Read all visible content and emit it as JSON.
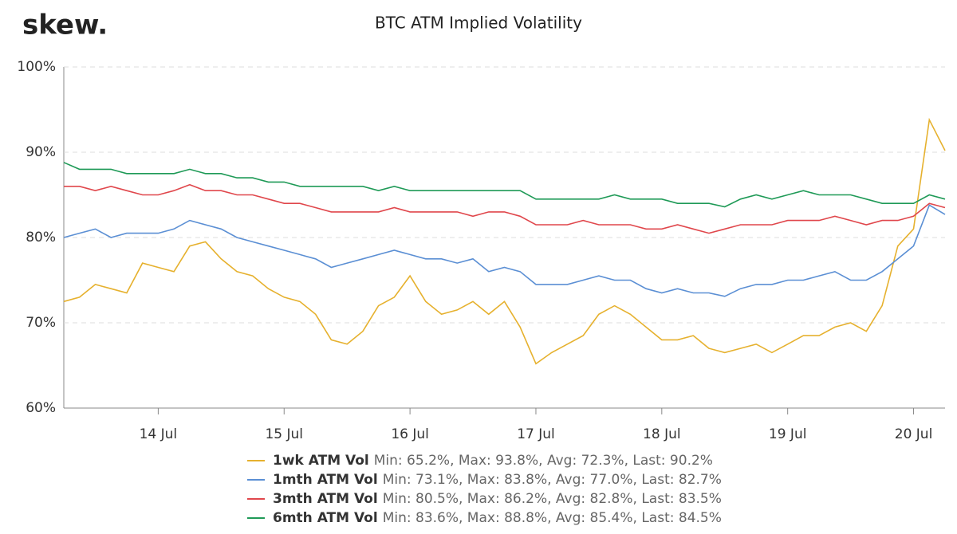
{
  "logo": "skew.",
  "chart_data": {
    "type": "line",
    "title": "BTC ATM Implied Volatility",
    "categories": [
      null,
      null,
      null,
      null,
      null,
      null,
      "14 Jul",
      null,
      null,
      null,
      null,
      null,
      null,
      null,
      "15 Jul",
      null,
      null,
      null,
      null,
      null,
      null,
      null,
      "16 Jul",
      null,
      null,
      null,
      null,
      null,
      null,
      null,
      "17 Jul",
      null,
      null,
      null,
      null,
      null,
      null,
      null,
      "18 Jul",
      null,
      null,
      null,
      null,
      null,
      null,
      null,
      "19 Jul",
      null,
      null,
      null,
      null,
      null,
      null,
      null,
      "20 Jul",
      null,
      null
    ],
    "ylim": [
      60,
      100
    ],
    "yticks": [
      {
        "value": 60,
        "label": "60%"
      },
      {
        "value": 70,
        "label": "70%"
      },
      {
        "value": 80,
        "label": "80%"
      },
      {
        "value": 90,
        "label": "90%"
      },
      {
        "value": 100,
        "label": "100%"
      }
    ],
    "grid": true,
    "series": [
      {
        "name": "1wk ATM Vol",
        "stats": "Min: 65.2%, Max: 93.8%, Avg: 72.3%, Last: 90.2%",
        "color": "#e6b12e",
        "values": [
          72.5,
          73,
          74.5,
          74,
          73.5,
          77,
          76.5,
          76,
          79,
          79.5,
          77.5,
          76,
          75.5,
          74,
          73,
          72.5,
          71,
          68,
          67.5,
          69,
          72,
          73,
          75.5,
          72.5,
          71,
          71.5,
          72.5,
          71,
          72.5,
          69.5,
          65.2,
          66.5,
          67.5,
          68.5,
          71,
          72,
          71,
          69.5,
          68,
          68,
          68.5,
          67,
          66.5,
          67,
          67.5,
          66.5,
          67.5,
          68.5,
          68.5,
          69.5,
          70,
          69,
          72,
          79,
          81,
          93.8,
          90.2
        ]
      },
      {
        "name": "1mth ATM Vol",
        "stats": "Min: 73.1%, Max: 83.8%, Avg: 77.0%, Last: 82.7%",
        "color": "#5b8fd4",
        "values": [
          80,
          80.5,
          81,
          80,
          80.5,
          80.5,
          80.5,
          81,
          82,
          81.5,
          81,
          80,
          79.5,
          79,
          78.5,
          78,
          77.5,
          76.5,
          77,
          77.5,
          78,
          78.5,
          78,
          77.5,
          77.5,
          77,
          77.5,
          76,
          76.5,
          76,
          74.5,
          74.5,
          74.5,
          75,
          75.5,
          75,
          75,
          74,
          73.5,
          74,
          73.5,
          73.5,
          73.1,
          74,
          74.5,
          74.5,
          75,
          75,
          75.5,
          76,
          75,
          75,
          76,
          77.5,
          79,
          83.8,
          82.7
        ]
      },
      {
        "name": "3mth ATM Vol",
        "stats": "Min: 80.5%, Max: 86.2%, Avg: 82.8%, Last: 83.5%",
        "color": "#e0474c",
        "values": [
          86,
          86,
          85.5,
          86,
          85.5,
          85,
          85,
          85.5,
          86.2,
          85.5,
          85.5,
          85,
          85,
          84.5,
          84,
          84,
          83.5,
          83,
          83,
          83,
          83,
          83.5,
          83,
          83,
          83,
          83,
          82.5,
          83,
          83,
          82.5,
          81.5,
          81.5,
          81.5,
          82,
          81.5,
          81.5,
          81.5,
          81,
          81,
          81.5,
          81,
          80.5,
          81,
          81.5,
          81.5,
          81.5,
          82,
          82,
          82,
          82.5,
          82,
          81.5,
          82,
          82,
          82.5,
          84,
          83.5
        ]
      },
      {
        "name": "6mth ATM Vol",
        "stats": "Min: 83.6%, Max: 88.8%, Avg: 85.4%, Last: 84.5%",
        "color": "#1f9a57",
        "values": [
          88.8,
          88,
          88,
          88,
          87.5,
          87.5,
          87.5,
          87.5,
          88,
          87.5,
          87.5,
          87,
          87,
          86.5,
          86.5,
          86,
          86,
          86,
          86,
          86,
          85.5,
          86,
          85.5,
          85.5,
          85.5,
          85.5,
          85.5,
          85.5,
          85.5,
          85.5,
          84.5,
          84.5,
          84.5,
          84.5,
          84.5,
          85,
          84.5,
          84.5,
          84.5,
          84,
          84,
          84,
          83.6,
          84.5,
          85,
          84.5,
          85,
          85.5,
          85,
          85,
          85,
          84.5,
          84,
          84,
          84,
          85,
          84.5
        ]
      }
    ]
  }
}
